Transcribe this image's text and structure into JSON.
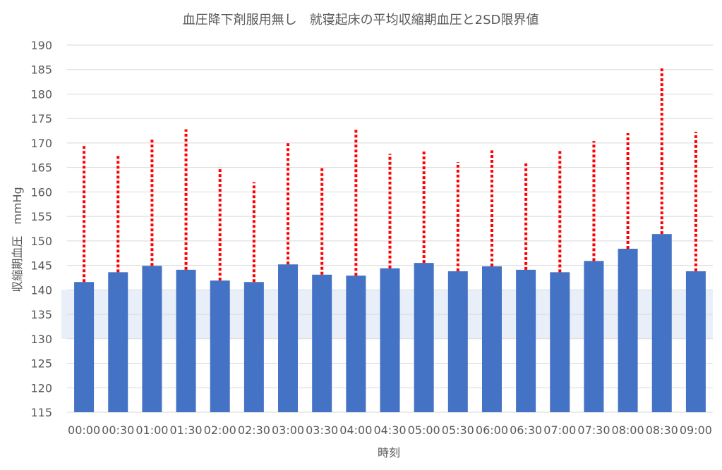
{
  "chart_data": {
    "type": "bar",
    "title": "血圧降下剤服用無し　就寝起床の平均収縮期血圧と2SD限界値",
    "xlabel": "時刻",
    "ylabel": "収縮期血圧　mmHg",
    "ylim": [
      115,
      190
    ],
    "ytick_step": 5,
    "grid": true,
    "reference_band": [
      130,
      140
    ],
    "categories": [
      "00:00",
      "00:30",
      "01:00",
      "01:30",
      "02:00",
      "02:30",
      "03:00",
      "03:30",
      "04:00",
      "04:30",
      "05:00",
      "05:30",
      "06:00",
      "06:30",
      "07:00",
      "07:30",
      "08:00",
      "08:30",
      "09:00"
    ],
    "series": [
      {
        "name": "平均収縮期血圧",
        "type": "bar",
        "values": [
          141.6,
          143.6,
          144.9,
          144.1,
          141.9,
          141.6,
          145.2,
          143.1,
          142.9,
          144.4,
          145.5,
          143.8,
          144.8,
          144.1,
          143.6,
          145.9,
          148.4,
          151.4,
          143.8
        ]
      },
      {
        "name": "2SD限界値",
        "type": "errorbar",
        "values": [
          169.4,
          167.4,
          170.7,
          172.8,
          165.1,
          162.0,
          170.1,
          164.9,
          172.8,
          167.8,
          168.5,
          166.1,
          168.5,
          166.2,
          168.5,
          170.4,
          172.0,
          185.6,
          172.3
        ]
      }
    ],
    "colors": {
      "bar": "#4472C4",
      "limit": "#FF0000",
      "band": "#E9EFF9",
      "grid": "#D9D9D9"
    }
  }
}
